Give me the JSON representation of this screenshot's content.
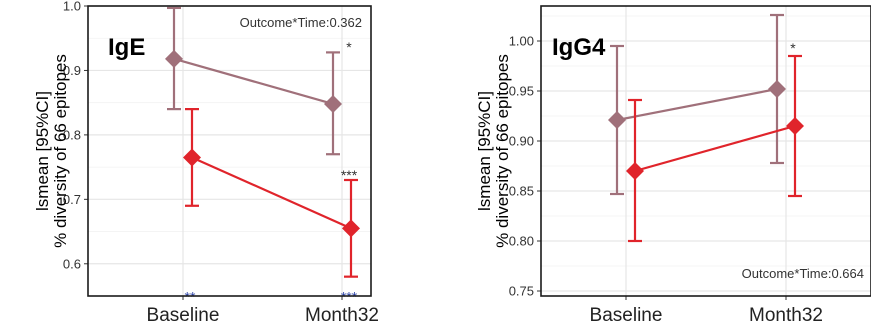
{
  "chart_data": [
    {
      "type": "line",
      "panel_label": "IgE",
      "annotation": "Outcome*Time:0.362",
      "ylabel_line1": "lsmean [95%CI]",
      "ylabel_line2": "% diversity of 66 epitopes",
      "categories": [
        "Baseline",
        "Month32"
      ],
      "ylim": [
        0.55,
        1.0
      ],
      "yticks": [
        "1.0",
        "0.9",
        "0.8",
        "0.7",
        "0.6"
      ],
      "ytick_values": [
        1.0,
        0.9,
        0.8,
        0.7,
        0.6
      ],
      "grid": true,
      "series": [
        {
          "color": "#a0707a",
          "values": [
            0.918,
            0.848
          ],
          "lower": [
            0.84,
            0.77
          ],
          "upper": [
            0.997,
            0.928
          ]
        },
        {
          "color": "#e0242b",
          "values": [
            0.765,
            0.655
          ],
          "lower": [
            0.69,
            0.58
          ],
          "upper": [
            0.84,
            0.73
          ]
        }
      ],
      "stars": [
        {
          "text": "*",
          "category": "Month32",
          "y": 0.935,
          "color": "#333333"
        },
        {
          "text": "***",
          "category": "Month32",
          "y": 0.736,
          "color": "#333333"
        },
        {
          "text": "**",
          "category": "Baseline",
          "y": 0.548,
          "color": "#2f46a8"
        },
        {
          "text": "***",
          "category": "Month32",
          "y": 0.548,
          "color": "#2f46a8"
        }
      ]
    },
    {
      "type": "line",
      "panel_label": "IgG4",
      "annotation": "Outcome*Time:0.664",
      "ylabel_line1": "lsmean [95%CI]",
      "ylabel_line2": "% diversity of 66 epitopes",
      "categories": [
        "Baseline",
        "Month32"
      ],
      "ylim": [
        0.745,
        1.035
      ],
      "yticks": [
        "1.00",
        "0.95",
        "0.90",
        "0.85",
        "0.80",
        "0.75"
      ],
      "ytick_values": [
        1.0,
        0.95,
        0.9,
        0.85,
        0.8,
        0.75
      ],
      "grid": true,
      "series": [
        {
          "color": "#a0707a",
          "values": [
            0.921,
            0.952
          ],
          "lower": [
            0.847,
            0.878
          ],
          "upper": [
            0.995,
            1.026
          ]
        },
        {
          "color": "#e0242b",
          "values": [
            0.87,
            0.915
          ],
          "lower": [
            0.8,
            0.845
          ],
          "upper": [
            0.941,
            0.985
          ]
        }
      ],
      "stars": [
        {
          "text": "*",
          "category": "Month32",
          "y": 0.992,
          "color": "#333333"
        }
      ]
    }
  ]
}
